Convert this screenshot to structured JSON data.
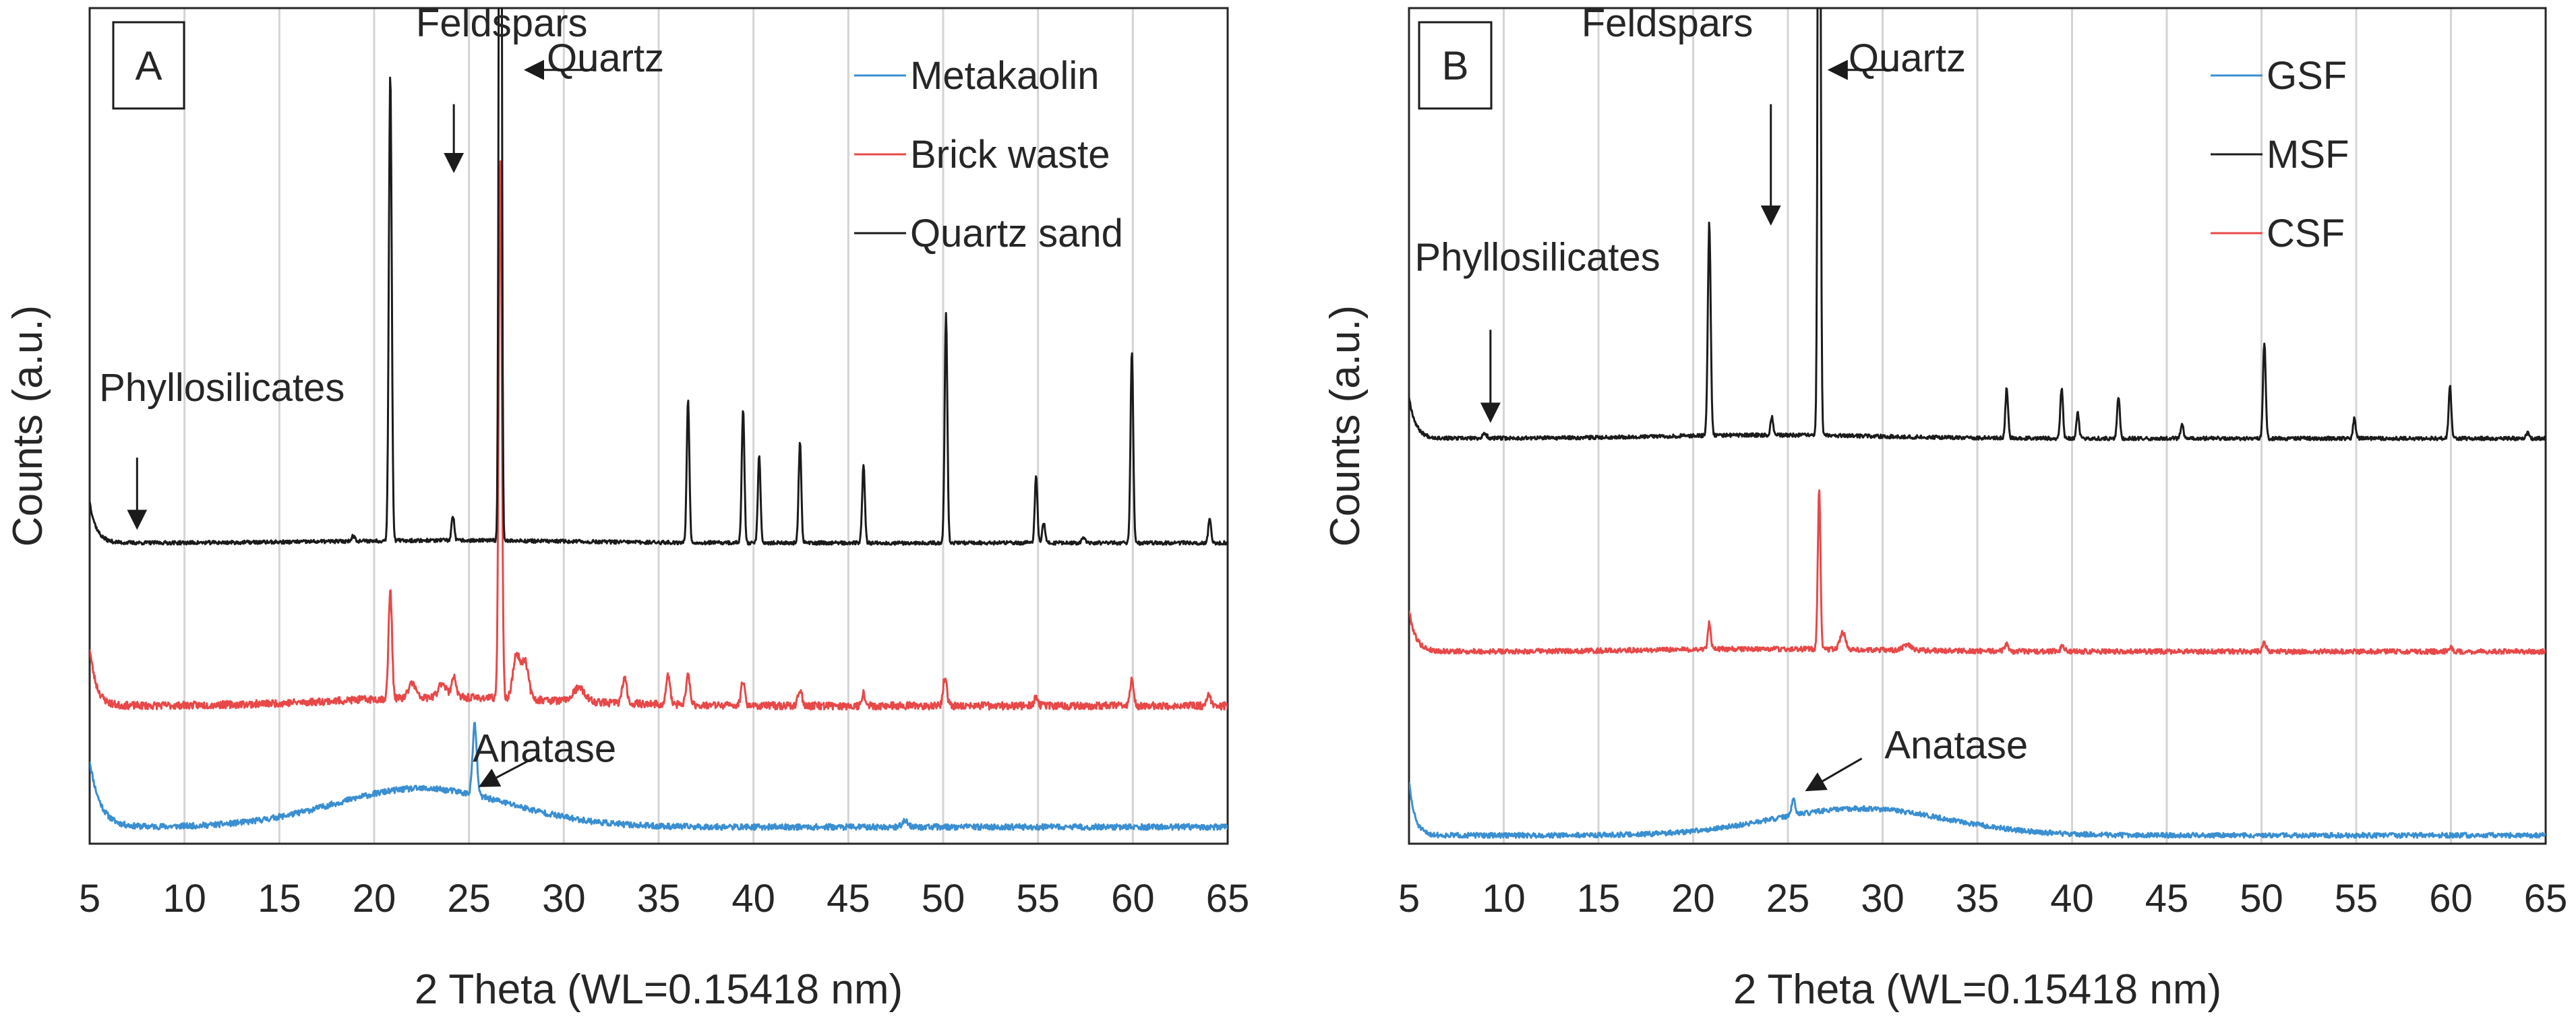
{
  "chart_data": [
    {
      "type": "line",
      "panel_label": "A",
      "xlabel": "2 Theta (WL=0.15418 nm)",
      "ylabel": "Counts (a.u.)",
      "xlim": [
        5,
        65
      ],
      "ylim": [
        0,
        100
      ],
      "xticks": [
        "5",
        "10",
        "15",
        "20",
        "25",
        "30",
        "35",
        "40",
        "45",
        "50",
        "55",
        "60",
        "65"
      ],
      "yticks": [],
      "grid": "vertical",
      "legend_position": "top-right",
      "series": [
        {
          "name": "Metakaolin",
          "color": "#3a8fd1",
          "baseline": 2.0,
          "noise": 0.35,
          "seed": 11,
          "hump": {
            "center": 22.5,
            "width": 4.6,
            "height": 4.6
          },
          "start": {
            "height": 8.0,
            "decay": 0.55
          },
          "peaks": [
            [
              25.3,
              8.4,
              0.11
            ],
            [
              48.0,
              0.8,
              0.15
            ]
          ]
        },
        {
          "name": "Brick waste",
          "color": "#e84848",
          "baseline": 16.5,
          "noise": 0.45,
          "seed": 23,
          "hump": {
            "center": 24.0,
            "width": 6.0,
            "height": 1.0
          },
          "start": {
            "height": 7.0,
            "decay": 0.35
          },
          "peaks": [
            [
              20.85,
              13.0,
              0.09
            ],
            [
              26.65,
              65.0,
              0.08
            ],
            [
              27.5,
              5.2,
              0.18
            ],
            [
              27.95,
              4.5,
              0.18
            ],
            [
              22.0,
              1.8,
              0.18
            ],
            [
              23.6,
              1.8,
              0.2
            ],
            [
              24.2,
              2.6,
              0.12
            ],
            [
              30.8,
              1.6,
              0.3
            ],
            [
              33.2,
              3.0,
              0.12
            ],
            [
              35.5,
              3.6,
              0.1
            ],
            [
              36.55,
              3.4,
              0.11
            ],
            [
              39.45,
              3.0,
              0.1
            ],
            [
              42.45,
              2.0,
              0.1
            ],
            [
              45.8,
              1.5,
              0.1
            ],
            [
              50.1,
              3.5,
              0.1
            ],
            [
              54.9,
              1.2,
              0.1
            ],
            [
              59.95,
              3.0,
              0.1
            ],
            [
              64.0,
              1.3,
              0.1
            ]
          ]
        },
        {
          "name": "Quartz sand",
          "color": "#1b1b1b",
          "baseline": 36.0,
          "noise": 0.22,
          "seed": 37,
          "hump": {
            "center": 24.0,
            "width": 6.0,
            "height": 0.3
          },
          "start": {
            "height": 5.0,
            "decay": 0.35
          },
          "peaks": [
            [
              20.85,
              56.0,
              0.075
            ],
            [
              24.15,
              3.0,
              0.07
            ],
            [
              26.65,
              150.0,
              0.065
            ],
            [
              36.55,
              17.0,
              0.07
            ],
            [
              39.45,
              16.0,
              0.07
            ],
            [
              40.3,
              10.5,
              0.07
            ],
            [
              42.45,
              12.0,
              0.07
            ],
            [
              45.8,
              9.5,
              0.07
            ],
            [
              50.15,
              27.5,
              0.07
            ],
            [
              54.9,
              8.0,
              0.07
            ],
            [
              55.3,
              2.5,
              0.07
            ],
            [
              59.95,
              23.0,
              0.07
            ],
            [
              64.05,
              3.0,
              0.07
            ],
            [
              18.9,
              0.6,
              0.1
            ],
            [
              57.4,
              0.6,
              0.1
            ]
          ]
        }
      ],
      "annotations": [
        {
          "text": "Feldspars",
          "x": 22.2,
          "y": 96.6,
          "arrow": "down",
          "ax": 24.2,
          "ay1": 88.5,
          "ay2": 80.5
        },
        {
          "text": "Quartz",
          "x": 29.1,
          "y": 92.4,
          "arrow": "left",
          "ax": 28.0,
          "ay1": 92.6,
          "ax2": 31.6
        },
        {
          "text": "Phyllosilicates",
          "x": 5.5,
          "y": 53.0,
          "arrow": "down",
          "ax": 7.5,
          "ay1": 46.2,
          "ay2": 37.8
        },
        {
          "text": "Anatase",
          "x": 25.2,
          "y": 9.8,
          "arrow": "diag",
          "ax": 25.6,
          "ay1": 6.9,
          "ax2": 28.7,
          "ay2": 10.6
        }
      ]
    },
    {
      "type": "line",
      "panel_label": "B",
      "xlabel": "2 Theta (WL=0.15418 nm)",
      "ylabel": "Counts (a.u.)",
      "xlim": [
        5,
        65
      ],
      "ylim": [
        0,
        100
      ],
      "xticks": [
        "5",
        "10",
        "15",
        "20",
        "25",
        "30",
        "35",
        "40",
        "45",
        "50",
        "55",
        "60",
        "65"
      ],
      "yticks": [],
      "grid": "vertical",
      "legend_position": "top-right",
      "series": [
        {
          "name": "GSF",
          "color": "#3a8fd1",
          "baseline": 1.0,
          "noise": 0.3,
          "seed": 51,
          "hump": {
            "center": 28.8,
            "width": 4.6,
            "height": 3.2
          },
          "start": {
            "height": 6.5,
            "decay": 0.3
          },
          "peaks": [
            [
              25.3,
              1.8,
              0.1
            ]
          ]
        },
        {
          "name": "MSF",
          "color": "#1b1b1b",
          "baseline": 48.5,
          "noise": 0.22,
          "seed": 67,
          "hump": {
            "center": 24.0,
            "width": 6.0,
            "height": 0.4
          },
          "start": {
            "height": 5.0,
            "decay": 0.35
          },
          "peaks": [
            [
              20.85,
              25.5,
              0.075
            ],
            [
              24.15,
              2.2,
              0.07
            ],
            [
              26.65,
              120.0,
              0.065
            ],
            [
              36.55,
              6.0,
              0.07
            ],
            [
              39.45,
              6.0,
              0.07
            ],
            [
              40.3,
              3.0,
              0.07
            ],
            [
              42.45,
              5.0,
              0.07
            ],
            [
              45.8,
              1.8,
              0.07
            ],
            [
              50.15,
              11.5,
              0.07
            ],
            [
              54.9,
              2.4,
              0.07
            ],
            [
              59.95,
              6.2,
              0.07
            ],
            [
              64.05,
              0.7,
              0.07
            ],
            [
              9.0,
              0.5,
              0.12
            ]
          ]
        },
        {
          "name": "CSF",
          "color": "#e84848",
          "baseline": 23.0,
          "noise": 0.3,
          "seed": 79,
          "hump": {
            "center": 24.0,
            "width": 6.0,
            "height": 0.3
          },
          "start": {
            "height": 5.0,
            "decay": 0.35
          },
          "peaks": [
            [
              20.85,
              3.2,
              0.08
            ],
            [
              26.65,
              19.0,
              0.07
            ],
            [
              27.9,
              2.0,
              0.15
            ],
            [
              31.3,
              0.7,
              0.2
            ],
            [
              36.55,
              0.8,
              0.1
            ],
            [
              39.5,
              0.6,
              0.1
            ],
            [
              50.15,
              1.0,
              0.1
            ],
            [
              59.95,
              0.5,
              0.1
            ]
          ]
        }
      ],
      "annotations": [
        {
          "text": "Feldspars",
          "x": 14.1,
          "y": 96.6,
          "arrow": "down",
          "ax": 24.1,
          "ay1": 88.5,
          "ay2": 74.2
        },
        {
          "text": "Quartz",
          "x": 28.2,
          "y": 92.4,
          "arrow": "left",
          "ax": 27.2,
          "ay1": 92.6,
          "ax2": 30.8
        },
        {
          "text": "Phyllosilicates",
          "x": 5.3,
          "y": 68.6,
          "arrow": "down",
          "ax": 9.3,
          "ay1": 61.5,
          "ay2": 50.6
        },
        {
          "text": "Anatase",
          "x": 30.1,
          "y": 10.2,
          "arrow": "diag",
          "ax": 26.0,
          "ay1": 6.4,
          "ax2": 28.9,
          "ay2": 10.2
        }
      ]
    }
  ]
}
